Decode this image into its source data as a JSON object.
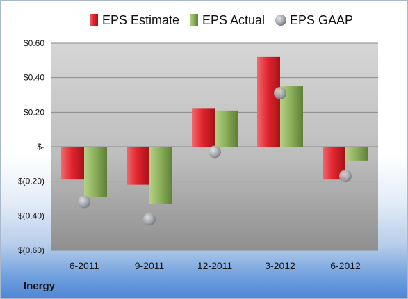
{
  "company": "Inergy",
  "colors": {
    "estimate": "#e3262e",
    "actual": "#8db25c",
    "gaap": "#9da3a8"
  },
  "chart_data": {
    "type": "bar",
    "categories": [
      "6-2011",
      "9-2011",
      "12-2011",
      "3-2012",
      "6-2012"
    ],
    "series": [
      {
        "name": "EPS Estimate",
        "kind": "bar",
        "values": [
          -0.19,
          -0.22,
          0.22,
          0.52,
          -0.19
        ]
      },
      {
        "name": "EPS Actual",
        "kind": "bar",
        "values": [
          -0.29,
          -0.33,
          0.21,
          0.35,
          -0.08
        ]
      },
      {
        "name": "EPS GAAP",
        "kind": "scatter",
        "values": [
          -0.32,
          -0.42,
          -0.03,
          0.31,
          -0.17
        ]
      }
    ],
    "ylim": [
      -0.6,
      0.6
    ],
    "yticks": [
      0.6,
      0.4,
      0.2,
      0,
      -0.2,
      -0.4,
      -0.6
    ],
    "ytick_labels": [
      "$0.60",
      "$0.40",
      "$0.20",
      "$-",
      "$(0.20)",
      "$(0.40)",
      "$(0.60)"
    ],
    "legend_position": "top",
    "grid": true
  }
}
